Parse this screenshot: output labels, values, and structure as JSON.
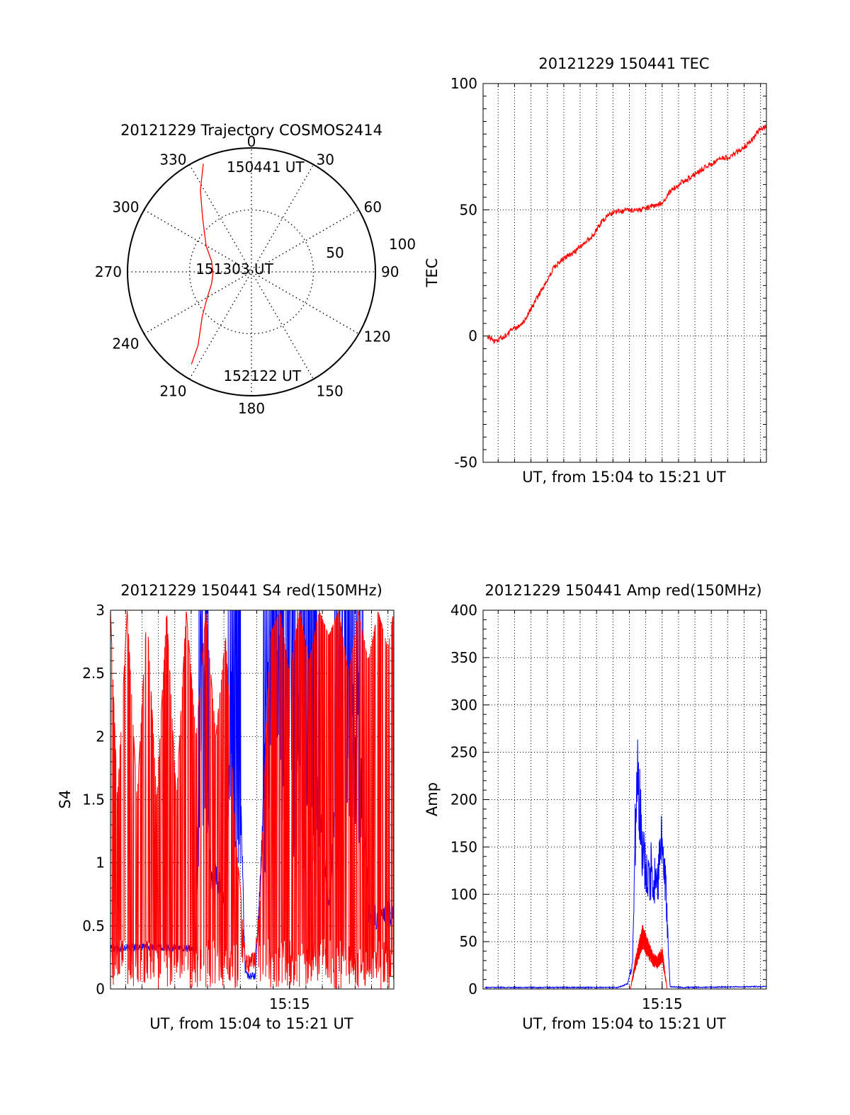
{
  "chart_data": [
    {
      "id": "trajectory",
      "type": "polar",
      "title": "20121229 Trajectory COSMOS2414",
      "angle_labels": [
        "0",
        "30",
        "60",
        "90",
        "120",
        "150",
        "180",
        "210",
        "240",
        "270",
        "300",
        "330"
      ],
      "radius_labels": [
        "50",
        "100"
      ],
      "grid": "dotted",
      "orientation": "0 at top, clockwise",
      "series": [
        {
          "color": "#ff0000",
          "points_azimuth_elevation": [
            [
              336,
              4
            ],
            [
              328,
              20
            ],
            [
              318,
              37
            ],
            [
              300,
              52
            ],
            [
              285,
              60
            ],
            [
              268,
              62
            ],
            [
              254,
              60
            ],
            [
              240,
              53
            ],
            [
              228,
              42
            ],
            [
              216,
              24
            ],
            [
              213,
              10
            ]
          ]
        }
      ],
      "annotations": [
        {
          "text": "150441 UT",
          "anchor": "start"
        },
        {
          "text": "151303 UT",
          "anchor": "middle"
        },
        {
          "text": "152122 UT",
          "anchor": "end"
        }
      ]
    },
    {
      "id": "tec",
      "type": "line",
      "title": "20121229 150441 TEC",
      "xlabel": "UT, from 15:04 to 15:21 UT",
      "ylabel": "TEC",
      "xlim": [
        15.068,
        15.356
      ],
      "ylim": [
        -50,
        100
      ],
      "ytick_labels": [
        "-50",
        "0",
        "50",
        "100"
      ],
      "xtick_labels": [],
      "grid": true,
      "series": [
        {
          "color": "#ff0000",
          "x_hours": [
            15.0725,
            15.08,
            15.09,
            15.1,
            15.11,
            15.12,
            15.13,
            15.14,
            15.15,
            15.16,
            15.18,
            15.19,
            15.2,
            15.22,
            15.23,
            15.25,
            15.26,
            15.27,
            15.28,
            15.29,
            15.3,
            15.31,
            15.32,
            15.33,
            15.34,
            15.35,
            15.356
          ],
          "y": [
            0,
            -2,
            0,
            3,
            6,
            13,
            20,
            27,
            31,
            33,
            40,
            46,
            49,
            50,
            50,
            53,
            58,
            61,
            63,
            66,
            68,
            70,
            71,
            74,
            77,
            82,
            83
          ]
        }
      ]
    },
    {
      "id": "s4",
      "type": "line",
      "title": "20121229 150441 S4 red(150MHz)",
      "xlabel": "UT, from 15:04 to 15:21 UT",
      "ylabel": "S4",
      "xlim": [
        15.068,
        15.356
      ],
      "ylim": [
        0,
        3
      ],
      "ytick_labels": [
        "0",
        "0.5",
        "1",
        "1.5",
        "2",
        "2.5",
        "3"
      ],
      "xtick_labels": [
        "15:15"
      ],
      "xtick_values": [
        15.25
      ],
      "grid": true,
      "series": [
        {
          "color": "#0000ff",
          "x_hours": [
            15.068,
            15.09,
            15.11,
            15.13,
            15.155,
            15.16,
            15.17,
            15.175,
            15.18,
            15.185,
            15.19,
            15.195,
            15.2,
            15.205,
            15.21,
            15.215,
            15.22,
            15.225,
            15.23,
            15.235,
            15.24,
            15.25,
            15.26,
            15.27,
            15.28,
            15.29,
            15.3,
            15.31,
            15.32,
            15.33,
            15.34,
            15.345,
            15.356
          ],
          "y": [
            0.32,
            0.33,
            0.33,
            0.33,
            0.32,
            3.0,
            0.85,
            0.9,
            0.8,
            0.6,
            2.2,
            1.4,
            1.6,
            0.12,
            0.1,
            0.1,
            0.8,
            1.8,
            2.8,
            2.7,
            2.3,
            2.0,
            2.2,
            1.4,
            1.5,
            0.6,
            2.0,
            1.9,
            2.4,
            0.6,
            0.55,
            0.6,
            0.6
          ]
        },
        {
          "color": "#ff0000",
          "x_hours": [
            15.068,
            15.075,
            15.085,
            15.095,
            15.105,
            15.115,
            15.125,
            15.135,
            15.145,
            15.155,
            15.165,
            15.175,
            15.185,
            15.195,
            15.2,
            15.205,
            15.21,
            15.215,
            15.22,
            15.23,
            15.24,
            15.25,
            15.26,
            15.27,
            15.28,
            15.29,
            15.3,
            15.31,
            15.32,
            15.33,
            15.34,
            15.35,
            15.356
          ],
          "y": [
            3.0,
            1.5,
            3.0,
            1.5,
            3.0,
            1.5,
            3.0,
            1.5,
            3.0,
            2.0,
            3.0,
            2.0,
            2.8,
            1.2,
            0.8,
            0.2,
            0.2,
            0.25,
            0.7,
            2.8,
            3.0,
            2.5,
            3.0,
            2.6,
            3.0,
            2.8,
            3.0,
            2.5,
            3.0,
            2.6,
            3.0,
            2.7,
            3.0
          ]
        }
      ]
    },
    {
      "id": "amp",
      "type": "line",
      "title": "20121229 150441 Amp red(150MHz)",
      "xlabel": "UT, from 15:04 to 15:21 UT",
      "ylabel": "Amp",
      "xlim": [
        15.068,
        15.356
      ],
      "ylim": [
        0,
        400
      ],
      "ytick_labels": [
        "0",
        "50",
        "100",
        "150",
        "200",
        "250",
        "300",
        "350",
        "400"
      ],
      "xtick_labels": [
        "15:15"
      ],
      "xtick_values": [
        15.25
      ],
      "grid": true,
      "series": [
        {
          "color": "#0000ff",
          "x_hours": [
            15.07,
            15.16,
            15.205,
            15.215,
            15.22,
            15.222,
            15.225,
            15.23,
            15.235,
            15.24,
            15.245,
            15.25,
            15.253,
            15.258,
            15.27,
            15.356
          ],
          "y": [
            1,
            1,
            1,
            5,
            30,
            160,
            240,
            160,
            120,
            140,
            110,
            180,
            130,
            2,
            1,
            2
          ]
        },
        {
          "color": "#ff0000",
          "x_hours": [
            15.218,
            15.222,
            15.23,
            15.24,
            15.245,
            15.25,
            15.255
          ],
          "y": [
            0,
            25,
            60,
            35,
            30,
            40,
            0
          ]
        }
      ]
    }
  ]
}
